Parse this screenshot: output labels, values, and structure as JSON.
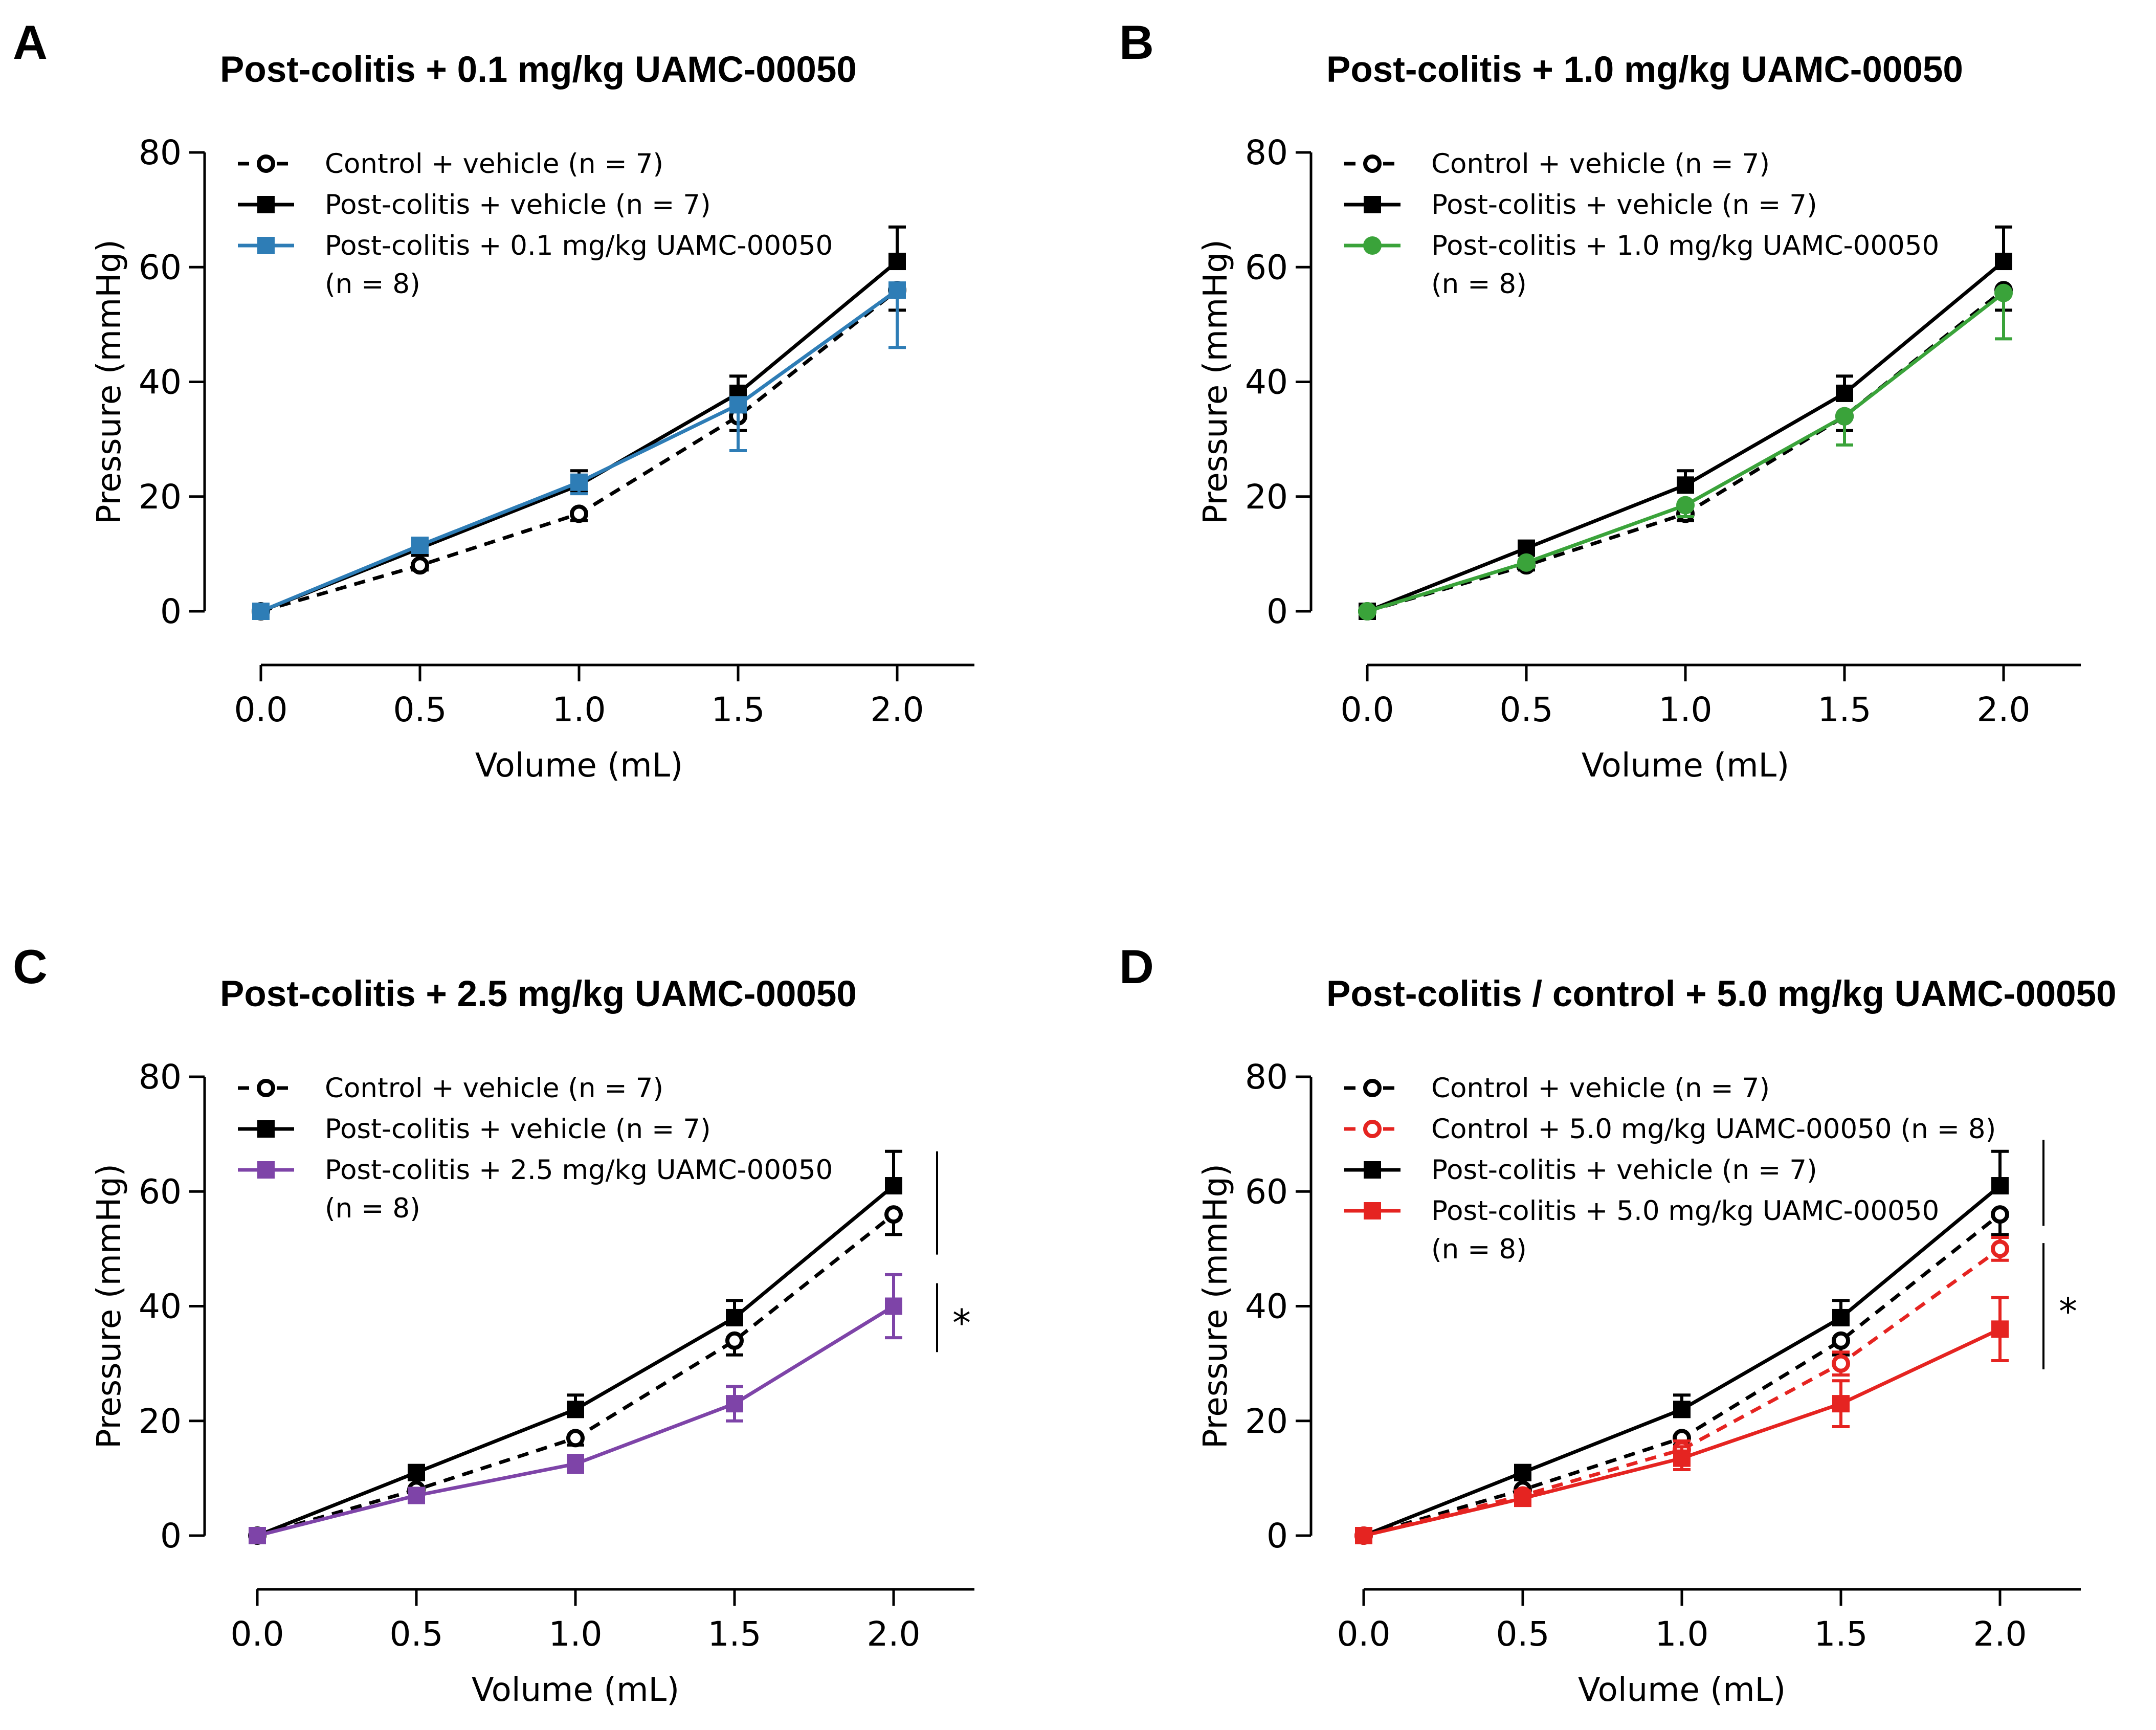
{
  "chart_data": [
    {
      "type": "line",
      "panel": "A",
      "title": "Post-colitis + 0.1 mg/kg UAMC-00050",
      "xlabel": "Volume (mL)",
      "ylabel": "Pressure (mmHg)",
      "x": [
        0.0,
        0.5,
        1.0,
        1.5,
        2.0
      ],
      "x_tick_labels": [
        "0.0",
        "0.5",
        "1.0",
        "1.5",
        "2.0"
      ],
      "y_ticks": [
        0,
        20,
        40,
        60,
        80
      ],
      "ylim": [
        0,
        80
      ],
      "xlim": [
        0,
        2.25
      ],
      "significance": [],
      "series": [
        {
          "name": "Control + vehicle (n = 7)",
          "legend_lines": [
            "Control + vehicle (n = 7)"
          ],
          "values": [
            0,
            8,
            17,
            34,
            56
          ],
          "err": [
            0,
            0.8,
            1.2,
            2.5,
            3.5
          ],
          "err_dir": "down",
          "color": "#000000",
          "dashed": true,
          "marker": "circle-open"
        },
        {
          "name": "Post-colitis + vehicle (n = 7)",
          "legend_lines": [
            "Post-colitis + vehicle (n = 7)"
          ],
          "values": [
            0,
            11,
            22,
            38,
            61
          ],
          "err": [
            0,
            1,
            2.5,
            3,
            6
          ],
          "err_dir": "up",
          "color": "#000000",
          "dashed": false,
          "marker": "square"
        },
        {
          "name": "Post-colitis + 0.1 mg/kg UAMC-00050 (n = 8)",
          "legend_lines": [
            "Post-colitis + 0.1 mg/kg UAMC-00050",
            "(n = 8)"
          ],
          "values": [
            0,
            11.5,
            22.5,
            36,
            56
          ],
          "err": [
            0,
            1,
            2,
            8,
            10
          ],
          "err_dir": "down",
          "color": "#2E7DB6",
          "dashed": false,
          "marker": "square"
        }
      ]
    },
    {
      "type": "line",
      "panel": "B",
      "title": "Post-colitis + 1.0 mg/kg UAMC-00050",
      "xlabel": "Volume (mL)",
      "ylabel": "Pressure (mmHg)",
      "x": [
        0.0,
        0.5,
        1.0,
        1.5,
        2.0
      ],
      "x_tick_labels": [
        "0.0",
        "0.5",
        "1.0",
        "1.5",
        "2.0"
      ],
      "y_ticks": [
        0,
        20,
        40,
        60,
        80
      ],
      "ylim": [
        0,
        80
      ],
      "xlim": [
        0,
        2.25
      ],
      "significance": [],
      "series": [
        {
          "name": "Control + vehicle (n = 7)",
          "legend_lines": [
            "Control + vehicle (n = 7)"
          ],
          "values": [
            0,
            8,
            17,
            34,
            56
          ],
          "err": [
            0,
            0.8,
            1.2,
            2.5,
            3.5
          ],
          "err_dir": "down",
          "color": "#000000",
          "dashed": true,
          "marker": "circle-open"
        },
        {
          "name": "Post-colitis + vehicle (n = 7)",
          "legend_lines": [
            "Post-colitis + vehicle (n = 7)"
          ],
          "values": [
            0,
            11,
            22,
            38,
            61
          ],
          "err": [
            0,
            1,
            2.5,
            3,
            6
          ],
          "err_dir": "up",
          "color": "#000000",
          "dashed": false,
          "marker": "square"
        },
        {
          "name": "Post-colitis + 1.0 mg/kg UAMC-00050 (n = 8)",
          "legend_lines": [
            "Post-colitis + 1.0 mg/kg UAMC-00050",
            "(n = 8)"
          ],
          "values": [
            0,
            8.5,
            18.5,
            34,
            55.5
          ],
          "err": [
            0,
            0.8,
            2,
            5,
            8
          ],
          "err_dir": "down",
          "color": "#3AA33A",
          "dashed": false,
          "marker": "circle-filled"
        }
      ]
    },
    {
      "type": "line",
      "panel": "C",
      "title": "Post-colitis + 2.5 mg/kg UAMC-00050",
      "xlabel": "Volume (mL)",
      "ylabel": "Pressure (mmHg)",
      "x": [
        0.0,
        0.5,
        1.0,
        1.5,
        2.0
      ],
      "x_tick_labels": [
        "0.0",
        "0.5",
        "1.0",
        "1.5",
        "2.0"
      ],
      "y_ticks": [
        0,
        20,
        40,
        60,
        80
      ],
      "ylim": [
        0,
        80
      ],
      "xlim": [
        0,
        2.25
      ],
      "significance": [
        {
          "y_range": [
            49,
            67
          ],
          "label": ""
        },
        {
          "y_range": [
            32,
            44
          ],
          "label": "*"
        }
      ],
      "series": [
        {
          "name": "Control + vehicle (n = 7)",
          "legend_lines": [
            "Control + vehicle (n = 7)"
          ],
          "values": [
            0,
            8,
            17,
            34,
            56
          ],
          "err": [
            0,
            0.8,
            1.2,
            2.5,
            3.5
          ],
          "err_dir": "down",
          "color": "#000000",
          "dashed": true,
          "marker": "circle-open"
        },
        {
          "name": "Post-colitis + vehicle (n = 7)",
          "legend_lines": [
            "Post-colitis + vehicle (n = 7)"
          ],
          "values": [
            0,
            11,
            22,
            38,
            61
          ],
          "err": [
            0,
            1,
            2.5,
            3,
            6
          ],
          "err_dir": "up",
          "color": "#000000",
          "dashed": false,
          "marker": "square"
        },
        {
          "name": "Post-colitis + 2.5 mg/kg UAMC-00050 (n = 8)",
          "legend_lines": [
            "Post-colitis + 2.5 mg/kg UAMC-00050",
            "(n = 8)"
          ],
          "values": [
            0,
            7,
            12.5,
            23,
            40
          ],
          "err": [
            0,
            0.8,
            1.5,
            3,
            5.5
          ],
          "err_dir": "both",
          "color": "#7E44A8",
          "dashed": false,
          "marker": "square"
        }
      ]
    },
    {
      "type": "line",
      "panel": "D",
      "title": "Post-colitis / control + 5.0 mg/kg UAMC-00050",
      "xlabel": "Volume (mL)",
      "ylabel": "Pressure (mmHg)",
      "x": [
        0.0,
        0.5,
        1.0,
        1.5,
        2.0
      ],
      "x_tick_labels": [
        "0.0",
        "0.5",
        "1.0",
        "1.5",
        "2.0"
      ],
      "y_ticks": [
        0,
        20,
        40,
        60,
        80
      ],
      "ylim": [
        0,
        80
      ],
      "xlim": [
        0,
        2.25
      ],
      "significance": [
        {
          "y_range": [
            54,
            69
          ],
          "label": ""
        },
        {
          "y_range": [
            29,
            51
          ],
          "label": "*"
        }
      ],
      "series": [
        {
          "name": "Control + vehicle (n = 7)",
          "legend_lines": [
            "Control + vehicle (n = 7)"
          ],
          "values": [
            0,
            8,
            17,
            34,
            56
          ],
          "err": [
            0,
            0.8,
            1.2,
            2.5,
            3.5
          ],
          "err_dir": "down",
          "color": "#000000",
          "dashed": true,
          "marker": "circle-open"
        },
        {
          "name": "Control + 5.0 mg/kg UAMC-00050 (n = 8)",
          "legend_lines": [
            "Control + 5.0 mg/kg UAMC-00050 (n = 8)"
          ],
          "values": [
            0,
            7,
            15,
            30,
            50
          ],
          "err": [
            0,
            0.8,
            1.5,
            2,
            2
          ],
          "err_dir": "both",
          "color": "#E52421",
          "dashed": true,
          "marker": "circle-open"
        },
        {
          "name": "Post-colitis + vehicle (n = 7)",
          "legend_lines": [
            "Post-colitis + vehicle (n = 7)"
          ],
          "values": [
            0,
            11,
            22,
            38,
            61
          ],
          "err": [
            0,
            1,
            2.5,
            3,
            6
          ],
          "err_dir": "up",
          "color": "#000000",
          "dashed": false,
          "marker": "square"
        },
        {
          "name": "Post-colitis + 5.0 mg/kg UAMC-00050 (n = 8)",
          "legend_lines": [
            "Post-colitis + 5.0 mg/kg UAMC-00050",
            "(n = 8)"
          ],
          "values": [
            0,
            6.5,
            13.5,
            23,
            36
          ],
          "err": [
            0,
            0.8,
            2,
            4,
            5.5
          ],
          "err_dir": "both",
          "color": "#E52421",
          "dashed": false,
          "marker": "square"
        }
      ]
    }
  ]
}
